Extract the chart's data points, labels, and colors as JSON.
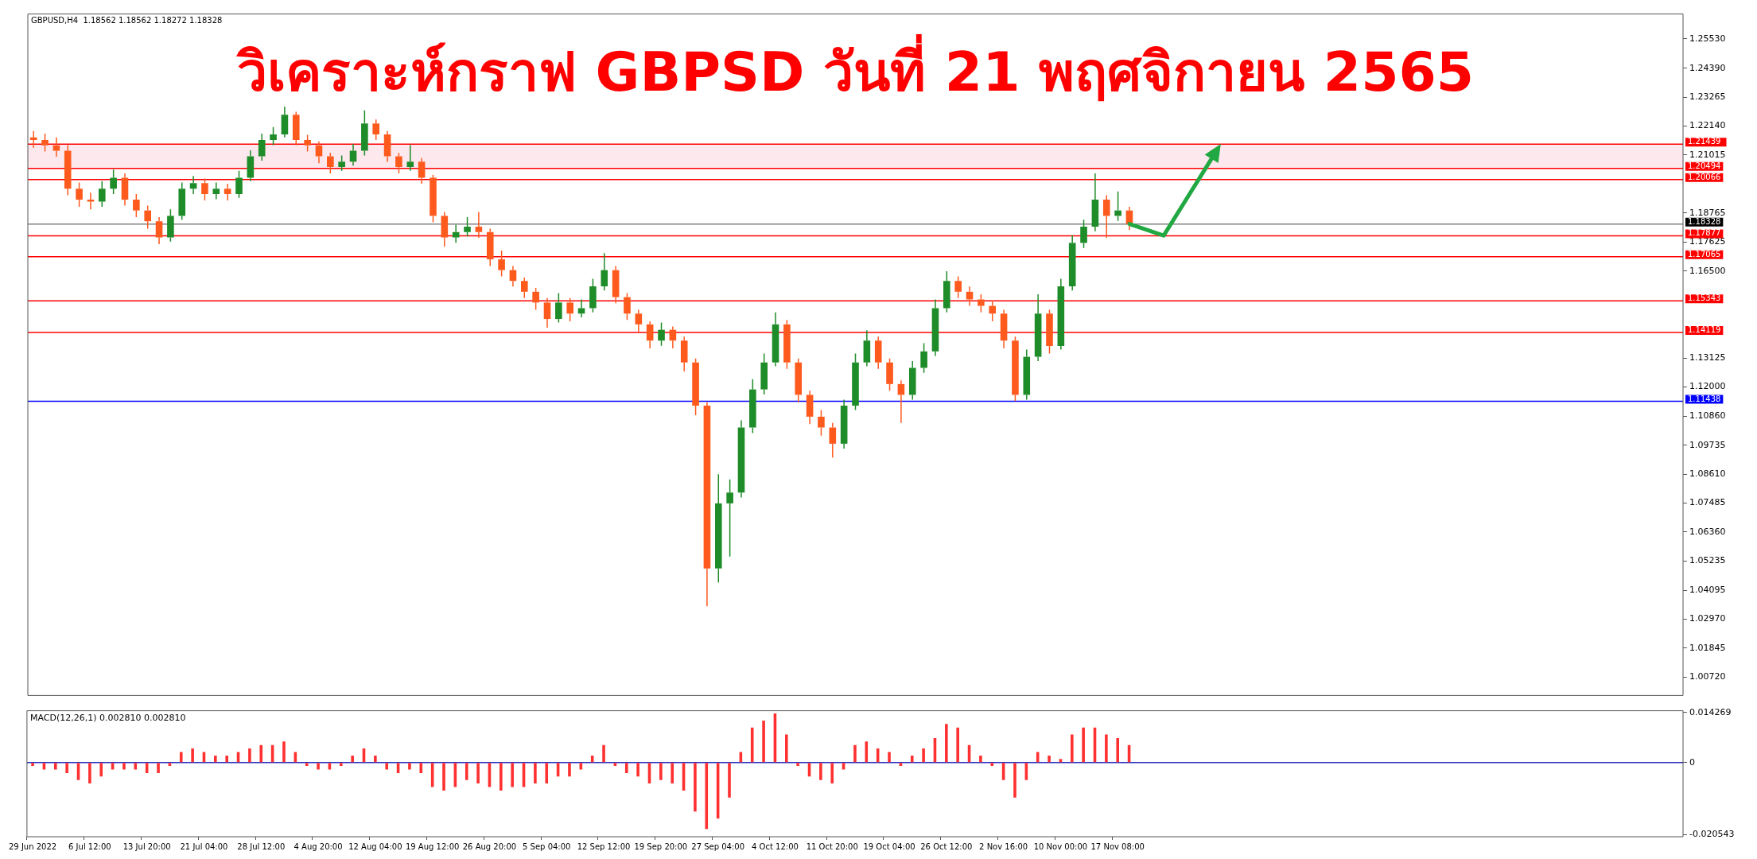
{
  "chart_data": [
    {
      "type": "candlestick",
      "title": "วิเคราะห์กราฟ GBPSD วันที่ 21 พฤศจิกายน 2565",
      "subtitle": "GBPUSD,H4  1.18562 1.18562 1.18272 1.18328",
      "categories": [
        null,
        null,
        null,
        null,
        null,
        null,
        null,
        null,
        null,
        null,
        null,
        null,
        null,
        null,
        null,
        null,
        null,
        null,
        null,
        null,
        null,
        null,
        null,
        null,
        null,
        null,
        null,
        null,
        null,
        null,
        null,
        null,
        null,
        null,
        null,
        null,
        null,
        null,
        null,
        null,
        null,
        null,
        null,
        null,
        null,
        null,
        null,
        null,
        null,
        null,
        null,
        null,
        null,
        null,
        null,
        null,
        null,
        null,
        null,
        null,
        null,
        null,
        null,
        null,
        null,
        null,
        null,
        null,
        null,
        null,
        null,
        null,
        null,
        null,
        null,
        null,
        null,
        null,
        null,
        null,
        null,
        null,
        null,
        null,
        null,
        null,
        null,
        null,
        null,
        null,
        null,
        null,
        null,
        null,
        null,
        null,
        null,
        null,
        null,
        null,
        null,
        null,
        null,
        null,
        null,
        null,
        null,
        null,
        null,
        null,
        null,
        null,
        null,
        null,
        null,
        null,
        null,
        null,
        null,
        null,
        null,
        null,
        null,
        null,
        null,
        null,
        null,
        null,
        null,
        null,
        null,
        null,
        null,
        null,
        null,
        null,
        null,
        null,
        null,
        null,
        null,
        null,
        null,
        null,
        null
      ],
      "ohlc": [
        [
          1.217,
          1.2195,
          1.213,
          1.216
        ],
        [
          1.216,
          1.2185,
          1.2115,
          1.2139
        ],
        [
          1.2139,
          1.217,
          1.2095,
          1.2118
        ],
        [
          1.2118,
          1.214,
          1.1945,
          1.1971
        ],
        [
          1.1971,
          1.1995,
          1.19,
          1.1928
        ],
        [
          1.1928,
          1.1955,
          1.189,
          1.192
        ],
        [
          1.192,
          1.2,
          1.19,
          1.1971
        ],
        [
          1.1971,
          1.2045,
          1.195,
          1.2013
        ],
        [
          1.2013,
          1.203,
          1.1905,
          1.1928
        ],
        [
          1.1928,
          1.195,
          1.186,
          1.1886
        ],
        [
          1.1886,
          1.1905,
          1.1815,
          1.1844
        ],
        [
          1.1844,
          1.186,
          1.1755,
          1.1781
        ],
        [
          1.1781,
          1.189,
          1.1765,
          1.1865
        ],
        [
          1.1865,
          1.1995,
          1.185,
          1.1971
        ],
        [
          1.1971,
          1.202,
          1.195,
          1.1992
        ],
        [
          1.1992,
          1.201,
          1.1925,
          1.195
        ],
        [
          1.195,
          1.1995,
          1.193,
          1.1971
        ],
        [
          1.1971,
          1.199,
          1.1925,
          1.195
        ],
        [
          1.195,
          1.204,
          1.1935,
          1.2013
        ],
        [
          1.2013,
          1.212,
          1.2,
          1.2097
        ],
        [
          1.2097,
          1.2185,
          1.208,
          1.216
        ],
        [
          1.216,
          1.221,
          1.214,
          1.2182
        ],
        [
          1.2182,
          1.229,
          1.217,
          1.2258
        ],
        [
          1.2258,
          1.227,
          1.214,
          1.216
        ],
        [
          1.216,
          1.218,
          1.2115,
          1.2139
        ],
        [
          1.2139,
          1.2155,
          1.207,
          1.2097
        ],
        [
          1.2097,
          1.211,
          1.203,
          1.2055
        ],
        [
          1.2055,
          1.21,
          1.204,
          1.2076
        ],
        [
          1.2076,
          1.2145,
          1.206,
          1.2118
        ],
        [
          1.2118,
          1.2275,
          1.21,
          1.2224
        ],
        [
          1.2224,
          1.224,
          1.216,
          1.2182
        ],
        [
          1.2182,
          1.2195,
          1.2075,
          1.2097
        ],
        [
          1.2097,
          1.211,
          1.203,
          1.2055
        ],
        [
          1.2055,
          1.214,
          1.204,
          1.2076
        ],
        [
          1.2076,
          1.209,
          1.199,
          1.2013
        ],
        [
          1.2013,
          1.2025,
          1.184,
          1.1865
        ],
        [
          1.1865,
          1.188,
          1.1745,
          1.1781
        ],
        [
          1.1781,
          1.183,
          1.176,
          1.1802
        ],
        [
          1.1802,
          1.186,
          1.1785,
          1.1823
        ],
        [
          1.1823,
          1.188,
          1.178,
          1.1802
        ],
        [
          1.1802,
          1.1815,
          1.167,
          1.1696
        ],
        [
          1.1696,
          1.173,
          1.163,
          1.1654
        ],
        [
          1.1654,
          1.167,
          1.159,
          1.1612
        ],
        [
          1.1612,
          1.1625,
          1.1545,
          1.157
        ],
        [
          1.157,
          1.1585,
          1.15,
          1.1528
        ],
        [
          1.1528,
          1.1545,
          1.143,
          1.1464
        ],
        [
          1.1464,
          1.1565,
          1.145,
          1.1528
        ],
        [
          1.1528,
          1.1545,
          1.1455,
          1.1485
        ],
        [
          1.1485,
          1.154,
          1.147,
          1.1506
        ],
        [
          1.1506,
          1.162,
          1.149,
          1.1591
        ],
        [
          1.1591,
          1.172,
          1.1575,
          1.1654
        ],
        [
          1.1654,
          1.167,
          1.1525,
          1.1549
        ],
        [
          1.1549,
          1.1565,
          1.146,
          1.1485
        ],
        [
          1.1485,
          1.15,
          1.1415,
          1.1443
        ],
        [
          1.1443,
          1.1455,
          1.135,
          1.138
        ],
        [
          1.138,
          1.145,
          1.136,
          1.1422
        ],
        [
          1.1422,
          1.1435,
          1.135,
          1.138
        ],
        [
          1.138,
          1.1395,
          1.126,
          1.1295
        ],
        [
          1.1295,
          1.131,
          1.109,
          1.1127
        ],
        [
          1.1127,
          1.114,
          1.0347,
          1.0494
        ],
        [
          1.0494,
          1.086,
          1.044,
          1.0747
        ],
        [
          1.0747,
          1.084,
          1.054,
          1.0789
        ],
        [
          1.0789,
          1.107,
          1.077,
          1.1042
        ],
        [
          1.1042,
          1.123,
          1.102,
          1.119
        ],
        [
          1.119,
          1.133,
          1.117,
          1.1295
        ],
        [
          1.1295,
          1.149,
          1.128,
          1.1443
        ],
        [
          1.1443,
          1.146,
          1.127,
          1.1295
        ],
        [
          1.1295,
          1.131,
          1.114,
          1.1169
        ],
        [
          1.1169,
          1.1185,
          1.1055,
          1.1084
        ],
        [
          1.1084,
          1.111,
          1.101,
          1.1042
        ],
        [
          1.1042,
          1.106,
          1.0925,
          1.0979
        ],
        [
          1.0979,
          1.115,
          1.096,
          1.1127
        ],
        [
          1.1127,
          1.133,
          1.111,
          1.1295
        ],
        [
          1.1295,
          1.142,
          1.128,
          1.138
        ],
        [
          1.138,
          1.1395,
          1.127,
          1.1295
        ],
        [
          1.1295,
          1.131,
          1.1185,
          1.1211
        ],
        [
          1.1211,
          1.1225,
          1.106,
          1.1169
        ],
        [
          1.1169,
          1.13,
          1.115,
          1.1274
        ],
        [
          1.1274,
          1.137,
          1.1255,
          1.1338
        ],
        [
          1.1338,
          1.154,
          1.132,
          1.1506
        ],
        [
          1.1506,
          1.165,
          1.149,
          1.1612
        ],
        [
          1.1612,
          1.163,
          1.1545,
          1.157
        ],
        [
          1.157,
          1.159,
          1.1515,
          1.154
        ],
        [
          1.154,
          1.156,
          1.149,
          1.1515
        ],
        [
          1.1515,
          1.1535,
          1.1455,
          1.1485
        ],
        [
          1.1485,
          1.15,
          1.135,
          1.138
        ],
        [
          1.138,
          1.1395,
          1.1145,
          1.1169
        ],
        [
          1.1169,
          1.1345,
          1.115,
          1.1317
        ],
        [
          1.1317,
          1.156,
          1.13,
          1.1485
        ],
        [
          1.1485,
          1.15,
          1.133,
          1.1359
        ],
        [
          1.1359,
          1.162,
          1.1345,
          1.1591
        ],
        [
          1.1591,
          1.179,
          1.1575,
          1.176
        ],
        [
          1.176,
          1.185,
          1.174,
          1.1823
        ],
        [
          1.1823,
          1.203,
          1.1805,
          1.1928
        ],
        [
          1.1928,
          1.1945,
          1.178,
          1.1865
        ],
        [
          1.1865,
          1.196,
          1.1845,
          1.1886
        ],
        [
          1.1886,
          1.19,
          1.181,
          1.1833
        ],
        null,
        null,
        null,
        null,
        null,
        null,
        null,
        null,
        null,
        null,
        null,
        null,
        null,
        null,
        null,
        null,
        null,
        null,
        null,
        null,
        null,
        null,
        null,
        null,
        null,
        null,
        null,
        null,
        null,
        null,
        null,
        null,
        null,
        null,
        null,
        null,
        null,
        null,
        null,
        null,
        null,
        null,
        null,
        null,
        null,
        null,
        null,
        null
      ],
      "colors": [
        "#ff5a1e",
        "#ff5a1e",
        "#ff5a1e",
        "#ff5a1e",
        "#ff5a1e",
        "#ff5a1e",
        "#1e8c28",
        "#1e8c28",
        "#ff5a1e",
        "#ff5a1e",
        "#ff5a1e",
        "#ff5a1e",
        "#1e8c28",
        "#1e8c28",
        "#1e8c28",
        "#ff5a1e",
        "#1e8c28",
        "#ff5a1e",
        "#1e8c28",
        "#1e8c28",
        "#1e8c28",
        "#1e8c28",
        "#1e8c28",
        "#ff5a1e",
        "#ff5a1e",
        "#ff5a1e",
        "#ff5a1e",
        "#1e8c28",
        "#1e8c28",
        "#1e8c28",
        "#ff5a1e",
        "#ff5a1e",
        "#ff5a1e",
        "#1e8c28",
        "#ff5a1e",
        "#ff5a1e",
        "#ff5a1e",
        "#1e8c28",
        "#1e8c28",
        "#ff5a1e",
        "#ff5a1e",
        "#ff5a1e",
        "#ff5a1e",
        "#ff5a1e",
        "#ff5a1e",
        "#ff5a1e",
        "#1e8c28",
        "#ff5a1e",
        "#1e8c28",
        "#1e8c28",
        "#1e8c28",
        "#ff5a1e",
        "#ff5a1e",
        "#ff5a1e",
        "#ff5a1e",
        "#1e8c28",
        "#ff5a1e",
        "#ff5a1e",
        "#ff5a1e",
        "#ff5a1e",
        "#1e8c28",
        "#1e8c28",
        "#1e8c28",
        "#1e8c28",
        "#1e8c28",
        "#1e8c28",
        "#ff5a1e",
        "#ff5a1e",
        "#ff5a1e",
        "#ff5a1e",
        "#ff5a1e",
        "#1e8c28",
        "#1e8c28",
        "#1e8c28",
        "#ff5a1e",
        "#ff5a1e",
        "#ff5a1e",
        "#1e8c28",
        "#1e8c28",
        "#1e8c28",
        "#1e8c28",
        "#ff5a1e",
        "#ff5a1e",
        "#ff5a1e",
        "#ff5a1e",
        "#ff5a1e",
        "#ff5a1e",
        "#1e8c28",
        "#1e8c28",
        "#ff5a1e",
        "#1e8c28",
        "#1e8c28",
        "#1e8c28",
        "#1e8c28",
        "#ff5a1e",
        "#1e8c28",
        "#ff5a1e",
        null,
        null,
        null,
        null,
        null,
        null,
        null,
        null,
        null,
        null,
        null,
        null,
        null,
        null,
        null,
        null,
        null,
        null,
        null,
        null,
        null,
        null,
        null,
        null,
        null,
        null,
        null,
        null,
        null,
        null,
        null,
        null,
        null,
        null,
        null,
        null,
        null,
        null,
        null,
        null,
        null,
        null,
        null,
        null,
        null,
        null,
        null,
        null
      ],
      "ylim": [
        1.0,
        1.265
      ],
      "yticks": [
        {
          "value": 1.2553,
          "label": "1.25530"
        },
        {
          "value": 1.2439,
          "label": "1.24390"
        },
        {
          "value": 1.23265,
          "label": "1.23265"
        },
        {
          "value": 1.2214,
          "label": "1.22140"
        },
        {
          "value": 1.21015,
          "label": "1.21015"
        },
        {
          "value": 1.18765,
          "label": "1.18765"
        },
        {
          "value": 1.17625,
          "label": "1.17625"
        },
        {
          "value": 1.165,
          "label": "1.16500"
        },
        {
          "value": 1.13125,
          "label": "1.13125"
        },
        {
          "value": 1.12,
          "label": "1.12000"
        },
        {
          "value": 1.1086,
          "label": "1.10860"
        },
        {
          "value": 1.09735,
          "label": "1.09735"
        },
        {
          "value": 1.0861,
          "label": "1.08610"
        },
        {
          "value": 1.07485,
          "label": "1.07485"
        },
        {
          "value": 1.0636,
          "label": "1.06360"
        },
        {
          "value": 1.05235,
          "label": "1.05235"
        },
        {
          "value": 1.04095,
          "label": "1.04095"
        },
        {
          "value": 1.0297,
          "label": "1.02970"
        },
        {
          "value": 1.01845,
          "label": "1.01845"
        },
        {
          "value": 1.0072,
          "label": "1.00720"
        }
      ],
      "ref_lines": [
        {
          "axis": "y",
          "value": 1.21439,
          "label": "1.21439",
          "color": "#ff0000"
        },
        {
          "axis": "y",
          "value": 1.20494,
          "label": "1.20494",
          "color": "#ff0000"
        },
        {
          "axis": "y",
          "value": 1.20066,
          "label": "1.20066",
          "color": "#ff0000"
        },
        {
          "axis": "y",
          "value": 1.18328,
          "label": "1.18328",
          "color": "#808080"
        },
        {
          "axis": "y",
          "value": 1.17877,
          "label": "1.17877",
          "color": "#ff0000"
        },
        {
          "axis": "y",
          "value": 1.17065,
          "label": "1.17065",
          "color": "#ff0000"
        },
        {
          "axis": "y",
          "value": 1.15343,
          "label": "1.15343",
          "color": "#ff0000"
        },
        {
          "axis": "y",
          "value": 1.14119,
          "label": "1.14119",
          "color": "#ff0000"
        },
        {
          "axis": "y",
          "value": 1.11438,
          "label": "1.11438",
          "color": "#0000ff"
        }
      ],
      "bands": [
        {
          "axis": "y",
          "from": 1.20494,
          "to": 1.21439,
          "color": "#fde8ee"
        }
      ],
      "tick_labels": "y"
    },
    {
      "type": "bar",
      "title": "MACD(12,26,1) 0.002810 0.002810",
      "categories": [
        "29 Jun 2022",
        null,
        null,
        null,
        null,
        "6 Jul 12:00",
        null,
        null,
        null,
        null,
        "13 Jul 20:00",
        null,
        null,
        null,
        null,
        "21 Jul 04:00",
        null,
        null,
        null,
        null,
        "28 Jul 12:00",
        null,
        null,
        null,
        null,
        "4 Aug 20:00",
        null,
        null,
        null,
        null,
        "12 Aug 04:00",
        null,
        null,
        null,
        null,
        "19 Aug 12:00",
        null,
        null,
        null,
        null,
        "26 Aug 20:00",
        null,
        null,
        null,
        null,
        "5 Sep 04:00",
        null,
        null,
        null,
        null,
        "12 Sep 12:00",
        null,
        null,
        null,
        null,
        "19 Sep 20:00",
        null,
        null,
        null,
        null,
        "27 Sep 04:00",
        null,
        null,
        null,
        null,
        "4 Oct 12:00",
        null,
        null,
        null,
        null,
        "11 Oct 20:00",
        null,
        null,
        null,
        null,
        "19 Oct 04:00",
        null,
        null,
        null,
        null,
        "26 Oct 12:00",
        null,
        null,
        null,
        null,
        "2 Nov 16:00",
        null,
        null,
        null,
        null,
        "10 Nov 00:00",
        null,
        null,
        null,
        null,
        "17 Nov 08:00",
        null,
        null,
        null,
        null,
        null,
        null,
        null,
        null,
        null,
        null,
        null,
        null,
        null,
        null,
        null,
        null,
        null,
        null,
        null,
        null,
        null,
        null,
        null,
        null,
        null,
        null,
        null,
        null,
        null,
        null,
        null,
        null,
        null,
        null,
        null,
        null,
        null,
        null,
        null,
        null,
        null,
        null,
        null,
        null,
        null,
        null,
        null,
        null,
        null
      ],
      "values": [
        -0.001,
        -0.002,
        -0.002,
        -0.003,
        -0.005,
        -0.006,
        -0.004,
        -0.002,
        -0.002,
        -0.002,
        -0.003,
        -0.003,
        -0.001,
        0.003,
        0.004,
        0.003,
        0.002,
        0.002,
        0.003,
        0.004,
        0.005,
        0.005,
        0.006,
        0.003,
        -0.001,
        -0.002,
        -0.002,
        -0.001,
        0.002,
        0.004,
        0.002,
        -0.002,
        -0.003,
        -0.002,
        -0.003,
        -0.007,
        -0.008,
        -0.007,
        -0.005,
        -0.006,
        -0.007,
        -0.008,
        -0.007,
        -0.007,
        -0.006,
        -0.006,
        -0.004,
        -0.004,
        -0.002,
        0.002,
        0.005,
        -0.001,
        -0.003,
        -0.004,
        -0.006,
        -0.005,
        -0.006,
        -0.008,
        -0.014,
        -0.019,
        -0.016,
        -0.01,
        0.003,
        0.01,
        0.012,
        0.014,
        0.008,
        -0.001,
        -0.004,
        -0.005,
        -0.006,
        -0.002,
        0.005,
        0.006,
        0.004,
        0.003,
        -0.001,
        0.002,
        0.004,
        0.007,
        0.011,
        0.01,
        0.005,
        0.002,
        -0.001,
        -0.005,
        -0.01,
        -0.005,
        0.003,
        0.002,
        0.001,
        0.008,
        0.01,
        0.01,
        0.008,
        0.007,
        0.005,
        null,
        null,
        null,
        null,
        null,
        null,
        null,
        null,
        null,
        null,
        null,
        null,
        null,
        null,
        null,
        null,
        null,
        null,
        null,
        null,
        null,
        null,
        null,
        null,
        null,
        null,
        null,
        null,
        null,
        null,
        null,
        null,
        null,
        null,
        null,
        null,
        null,
        null,
        null,
        null,
        null,
        null,
        null,
        null,
        null,
        null,
        null,
        null
      ],
      "color": "#ff3030",
      "ylim": [
        -0.0212,
        0.0148
      ],
      "yticks": [
        0.014269,
        0,
        -0.020543
      ],
      "ref_lines": [
        {
          "axis": "y",
          "value": 0,
          "color": "#3030c0"
        }
      ]
    }
  ]
}
